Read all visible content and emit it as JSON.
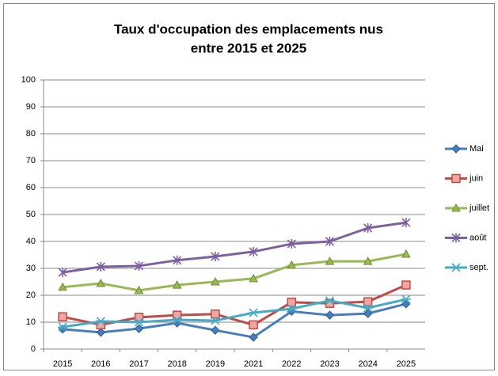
{
  "chart_data": {
    "type": "line",
    "title": [
      "Taux d'occupation des emplacements nus",
      "entre 2015 et 2025"
    ],
    "categories": [
      "2015",
      "2016",
      "2017",
      "2018",
      "2019",
      "2021",
      "2022",
      "2023",
      "2024",
      "2025"
    ],
    "series": [
      {
        "name": "Mai",
        "color": "#4a7ebb",
        "marker": "diamond",
        "values": [
          7.4,
          6.2,
          7.6,
          9.7,
          7,
          4.4,
          14,
          12.6,
          13.2,
          16.8
        ]
      },
      {
        "name": "juin",
        "color": "#be4b48",
        "marker": "square",
        "values": [
          12,
          9,
          11.8,
          12.6,
          13,
          9,
          17.4,
          17,
          17.6,
          23.8
        ]
      },
      {
        "name": "juillet",
        "color": "#98b954",
        "marker": "triangle",
        "values": [
          23,
          24.4,
          21.8,
          23.8,
          25,
          26.2,
          31.2,
          32.6,
          32.6,
          35.3
        ]
      },
      {
        "name": "août",
        "color": "#7d60a0",
        "marker": "star",
        "values": [
          28.5,
          30.6,
          30.9,
          33,
          34.4,
          36.2,
          39.1,
          40,
          45,
          47
        ]
      },
      {
        "name": "sept.",
        "color": "#46aac5",
        "marker": "asterisk",
        "values": [
          8.2,
          10.3,
          10,
          10.9,
          10.6,
          13.5,
          15,
          18,
          15.3,
          18.5
        ]
      }
    ],
    "ylim": [
      0,
      100
    ],
    "yticks": [
      0,
      10,
      20,
      30,
      40,
      50,
      60,
      70,
      80,
      90,
      100
    ],
    "grid": true,
    "legend": "right"
  }
}
